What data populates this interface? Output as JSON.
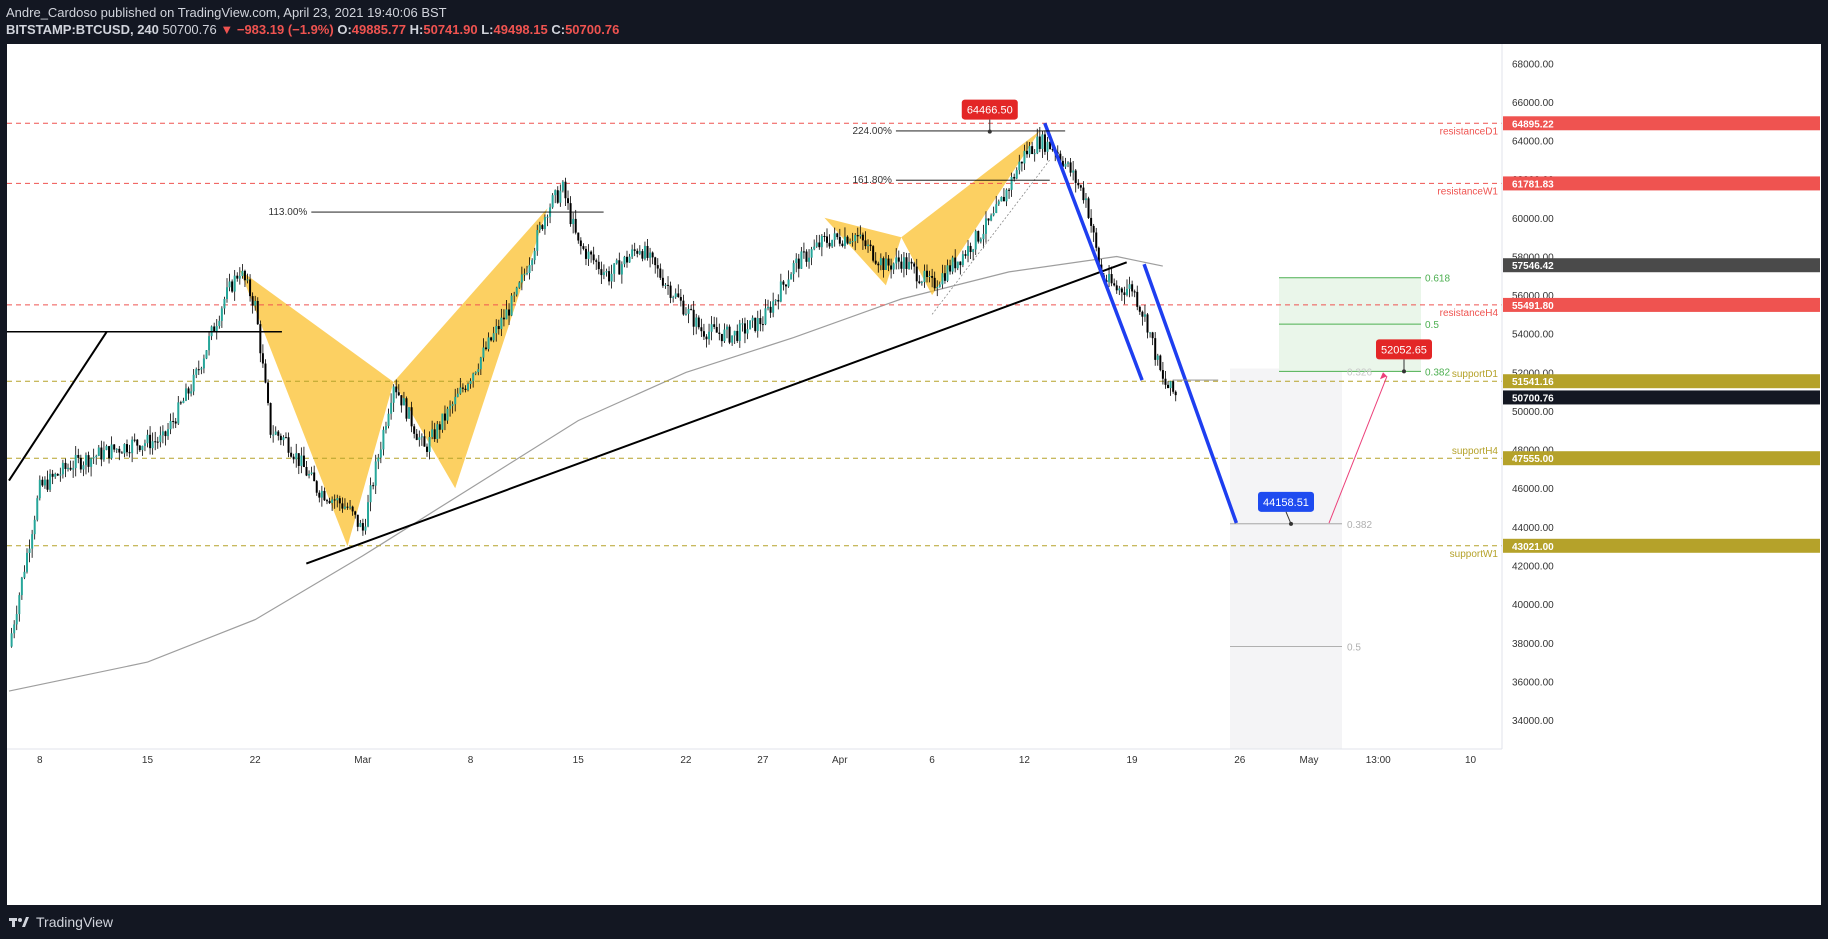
{
  "header": {
    "line1": "Andre_Cardoso published on TradingView.com, April 23, 2021 19:40:06 BST",
    "symbol": "BITSTAMP:BTCUSD, 240",
    "last": "50700.76",
    "change": "▼ −983.19 (−1.9%)",
    "open_label": "O:",
    "open": "49885.77",
    "high_label": "H:",
    "high": "50741.90",
    "low_label": "L:",
    "low": "49498.15",
    "close_label": "C:",
    "close": "50700.76"
  },
  "footer": {
    "brand": "TradingView",
    "icon": "tradingview-logo-icon"
  },
  "colors": {
    "background": "#ffffff",
    "page": "#131722",
    "up": "#26a69a",
    "down": "#000000",
    "resistance": "#ef5350",
    "support": "#b5a22a",
    "pattern": "#fbc02d",
    "channel": "#1e3ef0",
    "ma": "#9e9e9e",
    "fib": "#4caf50"
  },
  "chart_data": {
    "type": "line",
    "symbol": "BITSTAMP:BTCUSD",
    "interval": "240",
    "ylim": [
      32500,
      69000
    ],
    "y_ticks": [
      "34000.00",
      "36000.00",
      "38000.00",
      "40000.00",
      "42000.00",
      "44000.00",
      "46000.00",
      "48000.00",
      "50000.00",
      "52000.00",
      "54000.00",
      "56000.00",
      "58000.00",
      "60000.00",
      "62000.00",
      "64000.00",
      "66000.00",
      "68000.00"
    ],
    "x_ticks": [
      "8",
      "15",
      "22",
      "Mar",
      "8",
      "15",
      "22",
      "27",
      "Apr",
      "6",
      "12",
      "19",
      "26",
      "May",
      "13:00",
      "10"
    ],
    "x": [
      "Feb 6",
      "Feb 8",
      "Feb 10",
      "Feb 12",
      "Feb 14",
      "Feb 16",
      "Feb 18",
      "Feb 20",
      "Feb 21",
      "Feb 22",
      "Feb 23",
      "Feb 24",
      "Feb 26",
      "Feb 28",
      "Mar 1",
      "Mar 3",
      "Mar 5",
      "Mar 7",
      "Mar 9",
      "Mar 11",
      "Mar 13",
      "Mar 14",
      "Mar 15",
      "Mar 17",
      "Mar 19",
      "Mar 21",
      "Mar 23",
      "Mar 25",
      "Mar 27",
      "Mar 29",
      "Mar 31",
      "Apr 2",
      "Apr 4",
      "Apr 5",
      "Apr 7",
      "Apr 9",
      "Apr 11",
      "Apr 13",
      "Apr 14",
      "Apr 15",
      "Apr 16",
      "Apr 17",
      "Apr 18",
      "Apr 19",
      "Apr 20",
      "Apr 21",
      "Apr 22",
      "Apr 23"
    ],
    "series": [
      {
        "values": [
          37800,
          46000,
          47200,
          47800,
          48300,
          48500,
          51500,
          55800,
          57300,
          55500,
          49000,
          48500,
          46000,
          45000,
          43800,
          51500,
          48000,
          50500,
          53200,
          56000,
          60500,
          61500,
          58600,
          57000,
          58500,
          56300,
          54200,
          53900,
          54700,
          57500,
          58800,
          59100,
          57500,
          57800,
          56500,
          58100,
          60000,
          63300,
          64000,
          63600,
          62400,
          61000,
          57000,
          56300,
          56400,
          54500,
          51500,
          50700
        ]
      }
    ],
    "moving_average": {
      "x": [
        "Feb 6",
        "Feb 15",
        "Feb 22",
        "Mar 1",
        "Mar 8",
        "Mar 15",
        "Mar 22",
        "Mar 29",
        "Apr 5",
        "Apr 12",
        "Apr 19",
        "Apr 22"
      ],
      "values": [
        35500,
        37000,
        39200,
        42500,
        46000,
        49500,
        52000,
        53800,
        55800,
        57200,
        58000,
        57500
      ]
    },
    "levels": [
      {
        "name": "resistanceD1",
        "value": 64895.22,
        "label": "64895.22",
        "kind": "resistance"
      },
      {
        "name": "resistanceW1",
        "value": 61781.83,
        "label": "61781.83",
        "kind": "resistance"
      },
      {
        "name": "resistanceH4",
        "value": 55491.8,
        "label": "55491.80",
        "kind": "resistance"
      },
      {
        "name": "supportD1",
        "value": 51541.16,
        "label": "51541.16",
        "kind": "support"
      },
      {
        "name": "supportH4",
        "value": 47555.0,
        "label": "47555.00",
        "kind": "support"
      },
      {
        "name": "supportW1",
        "value": 43021.0,
        "label": "43021.00",
        "kind": "support"
      }
    ],
    "price_tags": [
      {
        "value": 57546.42,
        "label": "57546.42"
      },
      {
        "value": 50700.76,
        "label": "50700.76"
      }
    ],
    "callouts": [
      {
        "value": 64466.5,
        "label": "64466.50",
        "kind": "red"
      },
      {
        "value": 52052.65,
        "label": "52052.65",
        "kind": "red"
      },
      {
        "value": 44158.51,
        "label": "44158.51",
        "kind": "blue"
      }
    ],
    "fib_extensions": [
      {
        "label": "113.00%",
        "value": 60300
      },
      {
        "label": "161.80%",
        "value": 61950
      },
      {
        "label": "224.00%",
        "value": 64500
      }
    ],
    "fib_retracement_up": [
      {
        "label": "0.618",
        "value": 56900
      },
      {
        "label": "0.5",
        "value": 54500
      },
      {
        "label": "0.382",
        "value": 52052.65
      }
    ],
    "fib_retracement_down": [
      {
        "label": "0.382",
        "value": 44158.51
      },
      {
        "label": "0.5",
        "value": 37800
      }
    ],
    "faint_label": "0.326",
    "grid": false,
    "legend": "none"
  }
}
